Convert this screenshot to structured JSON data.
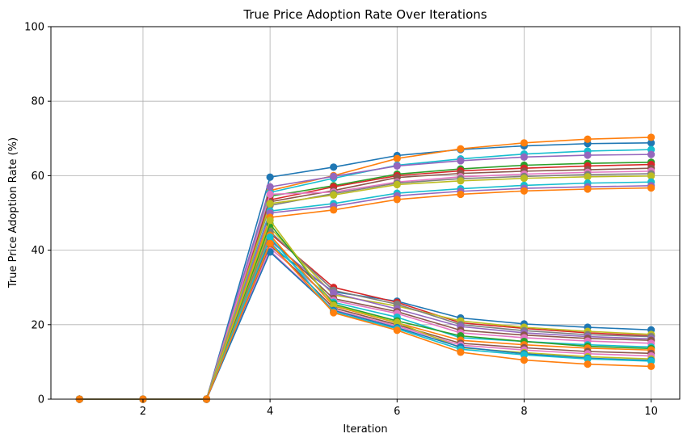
{
  "chart_data": {
    "type": "line",
    "title": "True Price Adoption Rate Over Iterations",
    "xlabel": "Iteration",
    "ylabel": "True Price Adoption Rate (%)",
    "xlim": [
      0.55,
      10.45
    ],
    "ylim": [
      0,
      100
    ],
    "xticks": [
      2,
      4,
      6,
      8,
      10
    ],
    "yticks": [
      0,
      20,
      40,
      60,
      80,
      100
    ],
    "grid": true,
    "marker": "circle",
    "x": [
      1,
      2,
      3,
      4,
      5,
      6,
      7,
      8,
      9,
      10
    ],
    "series": [
      {
        "color": "#1f77b4",
        "values": [
          0,
          0,
          0,
          59.6,
          62.3,
          65.4,
          67.0,
          68.0,
          68.6,
          68.8
        ]
      },
      {
        "color": "#ff7f0e",
        "values": [
          0,
          0,
          0,
          56.0,
          60.0,
          64.6,
          67.2,
          68.8,
          69.8,
          70.3
        ]
      },
      {
        "color": "#17becf",
        "values": [
          0,
          0,
          0,
          55.5,
          59.3,
          62.8,
          64.5,
          65.8,
          66.6,
          67.0
        ]
      },
      {
        "color": "#9467bd",
        "values": [
          0,
          0,
          0,
          57.0,
          59.8,
          62.6,
          64.0,
          65.0,
          65.5,
          65.7
        ]
      },
      {
        "color": "#2ca02c",
        "values": [
          0,
          0,
          0,
          54.5,
          57.3,
          60.4,
          61.8,
          62.8,
          63.3,
          63.6
        ]
      },
      {
        "color": "#d62728",
        "values": [
          0,
          0,
          0,
          53.5,
          57.0,
          60.0,
          61.3,
          62.0,
          62.6,
          63.0
        ]
      },
      {
        "color": "#8c564b",
        "values": [
          0,
          0,
          0,
          53.0,
          56.0,
          59.5,
          60.6,
          61.2,
          61.6,
          62.0
        ]
      },
      {
        "color": "#e377c2",
        "values": [
          0,
          0,
          0,
          55.0,
          55.6,
          58.3,
          59.7,
          60.4,
          60.9,
          61.2
        ]
      },
      {
        "color": "#7f7f7f",
        "values": [
          0,
          0,
          0,
          52.0,
          55.2,
          58.0,
          59.2,
          59.8,
          60.3,
          60.5
        ]
      },
      {
        "color": "#bcbd22",
        "values": [
          0,
          0,
          0,
          52.5,
          54.8,
          57.6,
          58.6,
          59.3,
          59.7,
          59.9
        ]
      },
      {
        "color": "#17becf",
        "values": [
          0,
          0,
          0,
          50.5,
          52.5,
          55.3,
          56.5,
          57.4,
          58.0,
          58.3
        ]
      },
      {
        "color": "#9467bd",
        "values": [
          0,
          0,
          0,
          50.0,
          51.8,
          54.6,
          55.8,
          56.6,
          57.0,
          57.3
        ]
      },
      {
        "color": "#ff7f0e",
        "values": [
          0,
          0,
          0,
          48.8,
          50.8,
          53.6,
          55.0,
          55.9,
          56.4,
          56.7
        ]
      },
      {
        "color": "#1f77b4",
        "values": [
          0,
          0,
          0,
          41.0,
          28.8,
          26.3,
          21.8,
          20.2,
          19.3,
          18.6
        ]
      },
      {
        "color": "#d62728",
        "values": [
          0,
          0,
          0,
          44.5,
          30.0,
          26.0,
          20.5,
          19.0,
          17.8,
          17.0
        ]
      },
      {
        "color": "#bcbd22",
        "values": [
          0,
          0,
          0,
          46.0,
          28.0,
          25.0,
          21.0,
          19.3,
          18.2,
          17.4
        ]
      },
      {
        "color": "#7f7f7f",
        "values": [
          0,
          0,
          0,
          45.0,
          29.2,
          25.5,
          20.0,
          18.4,
          17.3,
          16.8
        ]
      },
      {
        "color": "#9467bd",
        "values": [
          0,
          0,
          0,
          42.5,
          28.5,
          24.2,
          19.5,
          17.8,
          16.8,
          16.2
        ]
      },
      {
        "color": "#8c564b",
        "values": [
          0,
          0,
          0,
          43.0,
          27.0,
          23.5,
          18.5,
          17.2,
          16.3,
          15.8
        ]
      },
      {
        "color": "#e377c2",
        "values": [
          0,
          0,
          0,
          40.5,
          26.5,
          23.0,
          17.8,
          16.5,
          15.6,
          15.0
        ]
      },
      {
        "color": "#17becf",
        "values": [
          0,
          0,
          0,
          42.0,
          26.0,
          22.0,
          16.5,
          15.5,
          14.6,
          14.0
        ]
      },
      {
        "color": "#2ca02c",
        "values": [
          0,
          0,
          0,
          47.0,
          25.5,
          21.0,
          17.0,
          15.5,
          14.2,
          13.6
        ]
      },
      {
        "color": "#ff7f0e",
        "values": [
          0,
          0,
          0,
          44.0,
          25.0,
          20.5,
          15.8,
          14.6,
          13.7,
          13.2
        ]
      },
      {
        "color": "#8c564b",
        "values": [
          0,
          0,
          0,
          41.5,
          24.5,
          20.0,
          15.0,
          13.8,
          12.8,
          12.3
        ]
      },
      {
        "color": "#e377c2",
        "values": [
          0,
          0,
          0,
          39.8,
          24.0,
          19.6,
          14.5,
          13.2,
          12.2,
          11.6
        ]
      },
      {
        "color": "#bcbd22",
        "values": [
          0,
          0,
          0,
          48.0,
          25.2,
          20.6,
          13.8,
          12.5,
          11.4,
          10.8
        ]
      },
      {
        "color": "#1f77b4",
        "values": [
          0,
          0,
          0,
          39.5,
          23.8,
          19.2,
          14.0,
          12.2,
          11.0,
          10.4
        ]
      },
      {
        "color": "#17becf",
        "values": [
          0,
          0,
          0,
          43.5,
          23.4,
          18.9,
          13.4,
          11.9,
          10.8,
          10.2
        ]
      },
      {
        "color": "#ff7f0e",
        "values": [
          0,
          0,
          0,
          41.8,
          23.2,
          18.5,
          12.6,
          10.5,
          9.4,
          8.8
        ]
      }
    ]
  }
}
